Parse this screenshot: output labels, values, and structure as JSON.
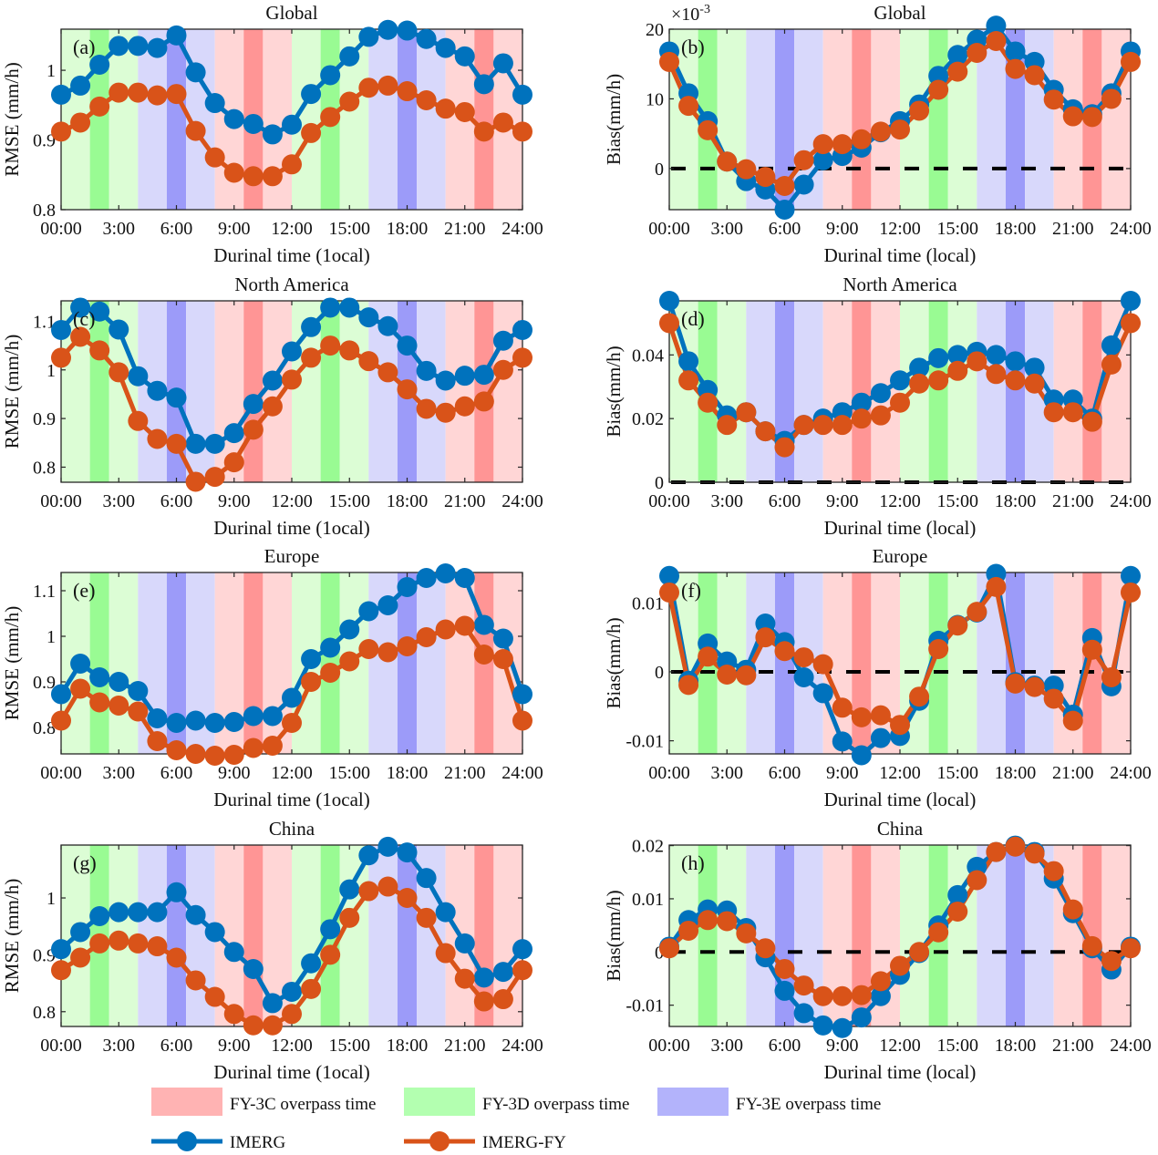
{
  "figure": {
    "x_tick_labels": [
      "00:00",
      "3:00",
      "6:00",
      "9:00",
      "12:00",
      "15:00",
      "18:00",
      "21:00",
      "24:00"
    ],
    "band_colors": {
      "FY-3C": {
        "light": "#ffd6d6",
        "dark": "#ff9595"
      },
      "FY-3D": {
        "light": "#dcfdd5",
        "dark": "#99fb93"
      },
      "FY-3E": {
        "light": "#d8d8fb",
        "dark": "#9c9bf9"
      }
    },
    "overpass_bands": [
      {
        "sat": "FY-3D",
        "start": 0,
        "end": 1.5,
        "shade": "light"
      },
      {
        "sat": "FY-3D",
        "start": 1.5,
        "end": 2.5,
        "shade": "dark"
      },
      {
        "sat": "FY-3D",
        "start": 2.5,
        "end": 4,
        "shade": "light"
      },
      {
        "sat": "FY-3E",
        "start": 4,
        "end": 5.5,
        "shade": "light"
      },
      {
        "sat": "FY-3E",
        "start": 5.5,
        "end": 6.5,
        "shade": "dark"
      },
      {
        "sat": "FY-3E",
        "start": 6.5,
        "end": 8,
        "shade": "light"
      },
      {
        "sat": "FY-3C",
        "start": 8,
        "end": 9.5,
        "shade": "light"
      },
      {
        "sat": "FY-3C",
        "start": 9.5,
        "end": 10.5,
        "shade": "dark"
      },
      {
        "sat": "FY-3C",
        "start": 10.5,
        "end": 12,
        "shade": "light"
      },
      {
        "sat": "FY-3D",
        "start": 12,
        "end": 13.5,
        "shade": "light"
      },
      {
        "sat": "FY-3D",
        "start": 13.5,
        "end": 14.5,
        "shade": "dark"
      },
      {
        "sat": "FY-3D",
        "start": 14.5,
        "end": 16,
        "shade": "light"
      },
      {
        "sat": "FY-3E",
        "start": 16,
        "end": 17.5,
        "shade": "light"
      },
      {
        "sat": "FY-3E",
        "start": 17.5,
        "end": 18.5,
        "shade": "dark"
      },
      {
        "sat": "FY-3E",
        "start": 18.5,
        "end": 20,
        "shade": "light"
      },
      {
        "sat": "FY-3C",
        "start": 20,
        "end": 21.5,
        "shade": "light"
      },
      {
        "sat": "FY-3C",
        "start": 21.5,
        "end": 22.5,
        "shade": "dark"
      },
      {
        "sat": "FY-3C",
        "start": 22.5,
        "end": 24,
        "shade": "light"
      }
    ],
    "series_colors": {
      "IMERG": "#0072bd",
      "IMERG-FY": "#d95319"
    },
    "legend": {
      "patches": [
        {
          "label": "FY-3C overpass time",
          "color": "#ffb3b3"
        },
        {
          "label": "FY-3D overpass time",
          "color": "#b3ffb0"
        },
        {
          "label": "FY-3E overpass time",
          "color": "#b3b3fb"
        }
      ],
      "lines": [
        {
          "label": "IMERG",
          "color": "#0072bd"
        },
        {
          "label": "IMERG-FY",
          "color": "#d95319"
        }
      ]
    }
  },
  "chart_data": [
    {
      "id": "a",
      "panel_label": "(a)",
      "type": "line",
      "title": "Global",
      "xlabel": "Durinal time  (1ocal)",
      "ylabel": "RMSE (mm/h)",
      "x": [
        0,
        1,
        2,
        3,
        4,
        5,
        6,
        7,
        8,
        9,
        10,
        11,
        12,
        13,
        14,
        15,
        16,
        17,
        18,
        19,
        20,
        21,
        22,
        23,
        24
      ],
      "xlim": [
        0,
        24
      ],
      "ylim": [
        0.8,
        1.059
      ],
      "yticks": [
        0.8,
        0.9,
        1.0
      ],
      "ytick_labels": [
        "0.8",
        "0.9",
        "1"
      ],
      "zero_line": false,
      "exponent_label": "",
      "series": [
        {
          "name": "IMERG",
          "values": [
            0.965,
            0.978,
            1.008,
            1.035,
            1.035,
            1.032,
            1.05,
            0.997,
            0.953,
            0.93,
            0.923,
            0.908,
            0.922,
            0.966,
            0.993,
            1.02,
            1.048,
            1.058,
            1.057,
            1.045,
            1.032,
            1.02,
            0.98,
            1.01,
            0.965
          ]
        },
        {
          "name": "IMERG-FY",
          "values": [
            0.912,
            0.925,
            0.948,
            0.968,
            0.968,
            0.964,
            0.966,
            0.913,
            0.875,
            0.853,
            0.848,
            0.848,
            0.865,
            0.91,
            0.933,
            0.955,
            0.975,
            0.978,
            0.97,
            0.957,
            0.945,
            0.94,
            0.912,
            0.925,
            0.912
          ]
        }
      ]
    },
    {
      "id": "b",
      "panel_label": "(b)",
      "type": "line",
      "title": "Global",
      "xlabel": "Durinal time (local)",
      "ylabel": "Bias(mm/h)",
      "x": [
        0,
        1,
        2,
        3,
        4,
        5,
        6,
        7,
        8,
        9,
        10,
        11,
        12,
        13,
        14,
        15,
        16,
        17,
        18,
        19,
        20,
        21,
        22,
        23,
        24
      ],
      "xlim": [
        0,
        24
      ],
      "ylim": [
        -5.9,
        20
      ],
      "yticks": [
        0,
        10,
        20
      ],
      "ytick_labels": [
        "0",
        "10",
        "20"
      ],
      "zero_line": true,
      "exponent_label": "×10",
      "exponent_power": "-3",
      "series": [
        {
          "name": "IMERG",
          "values": [
            16.8,
            10.8,
            6.8,
            1.0,
            -1.8,
            -3.0,
            -5.9,
            -2.3,
            1.2,
            1.8,
            3.0,
            5.2,
            6.8,
            9.2,
            13.3,
            16.3,
            18.5,
            20.5,
            16.8,
            15.3,
            11.3,
            8.5,
            7.8,
            10.8,
            16.8
          ]
        },
        {
          "name": "IMERG-FY",
          "values": [
            15.3,
            9.0,
            5.5,
            1.0,
            -0.1,
            -1.2,
            -2.5,
            1.2,
            3.5,
            3.5,
            4.2,
            5.3,
            5.6,
            8.3,
            11.3,
            13.9,
            16.6,
            18.3,
            14.3,
            13.4,
            9.9,
            7.5,
            7.4,
            10.0,
            15.3
          ]
        }
      ]
    },
    {
      "id": "c",
      "panel_label": "(c)",
      "type": "line",
      "title": "North America",
      "xlabel": "Durinal time  (1ocal)",
      "ylabel": "RMSE (mm/h)",
      "x": [
        0,
        1,
        2,
        3,
        4,
        5,
        6,
        7,
        8,
        9,
        10,
        11,
        12,
        13,
        14,
        15,
        16,
        17,
        18,
        19,
        20,
        21,
        22,
        23,
        24
      ],
      "xlim": [
        0,
        24
      ],
      "ylim": [
        0.769,
        1.142
      ],
      "yticks": [
        0.8,
        0.9,
        1.0,
        1.1
      ],
      "ytick_labels": [
        "0.8",
        "0.9",
        "1",
        "1.1"
      ],
      "zero_line": false,
      "exponent_label": "",
      "series": [
        {
          "name": "IMERG",
          "values": [
            1.082,
            1.128,
            1.12,
            1.083,
            0.987,
            0.957,
            0.943,
            0.848,
            0.848,
            0.87,
            0.93,
            0.978,
            1.038,
            1.088,
            1.128,
            1.128,
            1.108,
            1.09,
            1.05,
            0.998,
            0.978,
            0.988,
            0.99,
            1.06,
            1.082
          ]
        },
        {
          "name": "IMERG-FY",
          "values": [
            1.025,
            1.068,
            1.04,
            0.995,
            0.895,
            0.858,
            0.848,
            0.77,
            0.78,
            0.81,
            0.877,
            0.925,
            0.98,
            1.025,
            1.05,
            1.04,
            1.018,
            0.995,
            0.96,
            0.92,
            0.912,
            0.925,
            0.935,
            1.0,
            1.025
          ]
        }
      ]
    },
    {
      "id": "d",
      "panel_label": "(d)",
      "type": "line",
      "title": "North America",
      "xlabel": "Durinal time (local)",
      "ylabel": "Bias(mm/h)",
      "x": [
        0,
        1,
        2,
        3,
        4,
        5,
        6,
        7,
        8,
        9,
        10,
        11,
        12,
        13,
        14,
        15,
        16,
        17,
        18,
        19,
        20,
        21,
        22,
        23,
        24
      ],
      "xlim": [
        0,
        24
      ],
      "ylim": [
        0,
        0.057
      ],
      "yticks": [
        0,
        0.02,
        0.04
      ],
      "ytick_labels": [
        "0",
        "0.02",
        "0.04"
      ],
      "zero_line": true,
      "exponent_label": "",
      "series": [
        {
          "name": "IMERG",
          "values": [
            0.057,
            0.038,
            0.029,
            0.021,
            0.022,
            0.016,
            0.013,
            0.018,
            0.02,
            0.022,
            0.025,
            0.028,
            0.032,
            0.036,
            0.039,
            0.04,
            0.041,
            0.04,
            0.038,
            0.036,
            0.026,
            0.026,
            0.02,
            0.043,
            0.057
          ]
        },
        {
          "name": "IMERG-FY",
          "values": [
            0.05,
            0.032,
            0.025,
            0.018,
            0.022,
            0.016,
            0.011,
            0.018,
            0.018,
            0.018,
            0.02,
            0.021,
            0.025,
            0.031,
            0.032,
            0.035,
            0.038,
            0.034,
            0.032,
            0.031,
            0.022,
            0.022,
            0.019,
            0.037,
            0.05
          ]
        }
      ]
    },
    {
      "id": "e",
      "panel_label": "(e)",
      "type": "line",
      "title": "Europe",
      "xlabel": "Durinal time  (1ocal)",
      "ylabel": "RMSE (mm/h)",
      "x": [
        0,
        1,
        2,
        3,
        4,
        5,
        6,
        7,
        8,
        9,
        10,
        11,
        12,
        13,
        14,
        15,
        16,
        17,
        18,
        19,
        20,
        21,
        22,
        23,
        24
      ],
      "xlim": [
        0,
        24
      ],
      "ylim": [
        0.742,
        1.14
      ],
      "yticks": [
        0.8,
        0.9,
        1.0,
        1.1
      ],
      "ytick_labels": [
        "0.8",
        "0.9",
        "1",
        "1.1"
      ],
      "zero_line": false,
      "exponent_label": "",
      "series": [
        {
          "name": "IMERG",
          "values": [
            0.873,
            0.94,
            0.91,
            0.9,
            0.88,
            0.82,
            0.81,
            0.815,
            0.81,
            0.812,
            0.825,
            0.825,
            0.865,
            0.95,
            0.975,
            1.015,
            1.055,
            1.068,
            1.108,
            1.128,
            1.138,
            1.128,
            1.025,
            0.995,
            0.873
          ]
        },
        {
          "name": "IMERG-FY",
          "values": [
            0.815,
            0.885,
            0.855,
            0.848,
            0.835,
            0.77,
            0.75,
            0.742,
            0.738,
            0.74,
            0.755,
            0.76,
            0.81,
            0.9,
            0.92,
            0.945,
            0.972,
            0.965,
            0.978,
            0.998,
            1.015,
            1.023,
            0.96,
            0.95,
            0.815
          ]
        }
      ]
    },
    {
      "id": "f",
      "panel_label": "(f)",
      "type": "line",
      "title": "Europe",
      "xlabel": "Durinal time (local)",
      "ylabel": "Bias(mm/h)",
      "x": [
        0,
        1,
        2,
        3,
        4,
        5,
        6,
        7,
        8,
        9,
        10,
        11,
        12,
        13,
        14,
        15,
        16,
        17,
        18,
        19,
        20,
        21,
        22,
        23,
        24
      ],
      "xlim": [
        0,
        24
      ],
      "ylim": [
        -0.0119,
        0.0144
      ],
      "yticks": [
        -0.01,
        0,
        0.01
      ],
      "ytick_labels": [
        "-0.01",
        "0",
        "0.01"
      ],
      "zero_line": true,
      "exponent_label": "",
      "series": [
        {
          "name": "IMERG",
          "values": [
            0.0139,
            -0.0013,
            0.0041,
            0.0015,
            0.0003,
            0.007,
            0.0043,
            -0.0008,
            -0.0031,
            -0.0101,
            -0.0121,
            -0.0096,
            -0.0093,
            -0.0042,
            0.0045,
            0.0068,
            0.0086,
            0.0142,
            -0.0015,
            -0.002,
            -0.002,
            -0.0062,
            0.0049,
            -0.0021,
            0.0139
          ]
        },
        {
          "name": "IMERG-FY",
          "values": [
            0.0115,
            -0.0019,
            0.0022,
            -0.0004,
            -0.0005,
            0.005,
            0.003,
            0.0021,
            0.0011,
            -0.0052,
            -0.0066,
            -0.0063,
            -0.0077,
            -0.0036,
            0.0033,
            0.0067,
            0.0087,
            0.0123,
            -0.0017,
            -0.0022,
            -0.0039,
            -0.0071,
            0.0032,
            -0.0008,
            0.0115
          ]
        }
      ]
    },
    {
      "id": "g",
      "panel_label": "(g)",
      "type": "line",
      "title": "China",
      "xlabel": "Durinal time  (1ocal)",
      "ylabel": "RMSE (mm/h)",
      "x": [
        0,
        1,
        2,
        3,
        4,
        5,
        6,
        7,
        8,
        9,
        10,
        11,
        12,
        13,
        14,
        15,
        16,
        17,
        18,
        19,
        20,
        21,
        22,
        23,
        24
      ],
      "xlim": [
        0,
        24
      ],
      "ylim": [
        0.774,
        1.093
      ],
      "yticks": [
        0.8,
        0.9,
        1.0
      ],
      "ytick_labels": [
        "0.8",
        "0.9",
        "1"
      ],
      "zero_line": false,
      "exponent_label": "",
      "series": [
        {
          "name": "IMERG",
          "values": [
            0.91,
            0.94,
            0.968,
            0.975,
            0.975,
            0.975,
            1.01,
            0.97,
            0.94,
            0.905,
            0.875,
            0.815,
            0.835,
            0.885,
            0.945,
            1.015,
            1.075,
            1.09,
            1.08,
            1.035,
            0.975,
            0.92,
            0.86,
            0.87,
            0.91
          ]
        },
        {
          "name": "IMERG-FY",
          "values": [
            0.873,
            0.895,
            0.92,
            0.925,
            0.92,
            0.915,
            0.895,
            0.855,
            0.826,
            0.796,
            0.776,
            0.776,
            0.796,
            0.84,
            0.9,
            0.965,
            1.012,
            1.02,
            1.0,
            0.965,
            0.903,
            0.858,
            0.818,
            0.822,
            0.873
          ]
        }
      ]
    },
    {
      "id": "h",
      "panel_label": "(h)",
      "type": "line",
      "title": "China",
      "xlabel": "Durinal time (local)",
      "ylabel": "Bias(mm/h)",
      "x": [
        0,
        1,
        2,
        3,
        4,
        5,
        6,
        7,
        8,
        9,
        10,
        11,
        12,
        13,
        14,
        15,
        16,
        17,
        18,
        19,
        20,
        21,
        22,
        23,
        24
      ],
      "xlim": [
        0,
        24
      ],
      "ylim": [
        -0.014,
        0.0201
      ],
      "yticks": [
        -0.01,
        0,
        0.01,
        0.02
      ],
      "ytick_labels": [
        "-0.01",
        "0",
        "0.01",
        "0.02"
      ],
      "zero_line": true,
      "exponent_label": "",
      "series": [
        {
          "name": "IMERG",
          "values": [
            0.001,
            0.006,
            0.008,
            0.0078,
            0.0045,
            -0.001,
            -0.0073,
            -0.0115,
            -0.0138,
            -0.0143,
            -0.0123,
            -0.0083,
            -0.0043,
            -0.0002,
            0.005,
            0.0107,
            0.016,
            0.0188,
            0.02,
            0.0188,
            0.0138,
            0.0073,
            0.0007,
            -0.0033,
            0.001
          ]
        },
        {
          "name": "IMERG-FY",
          "values": [
            0.0007,
            0.004,
            0.006,
            0.0058,
            0.0035,
            0.0007,
            -0.0032,
            -0.0063,
            -0.0083,
            -0.0083,
            -0.0081,
            -0.0055,
            -0.0026,
            0.0,
            0.0037,
            0.0076,
            0.0135,
            0.0188,
            0.0198,
            0.0185,
            0.0152,
            0.008,
            0.0011,
            -0.0017,
            0.0007
          ]
        }
      ]
    }
  ]
}
